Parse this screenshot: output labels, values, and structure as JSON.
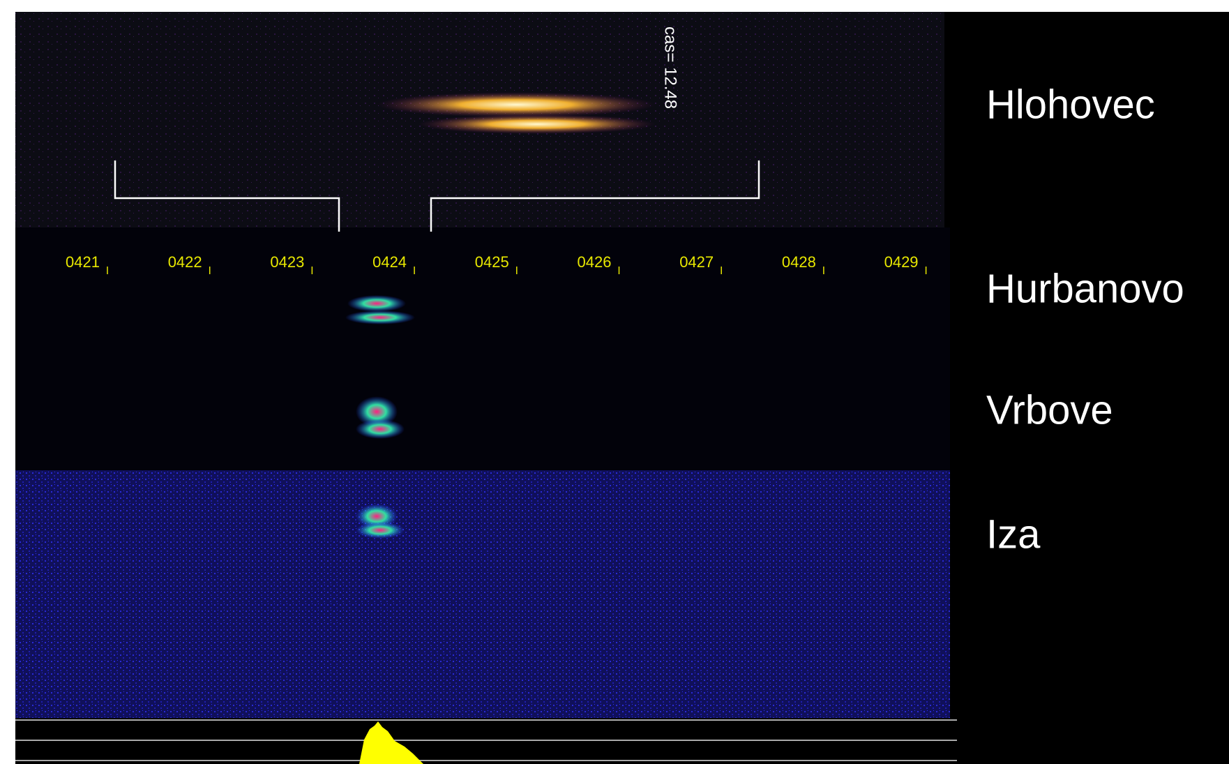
{
  "annotation": "cas= 12.48",
  "station_labels": [
    "Hlohovec",
    "Hurbanovo",
    "Vrbove",
    "Iza"
  ],
  "time_ticks": [
    "0421",
    "0422",
    "0423",
    "0424",
    "0425",
    "0426",
    "0427",
    "0428",
    "0429"
  ]
}
